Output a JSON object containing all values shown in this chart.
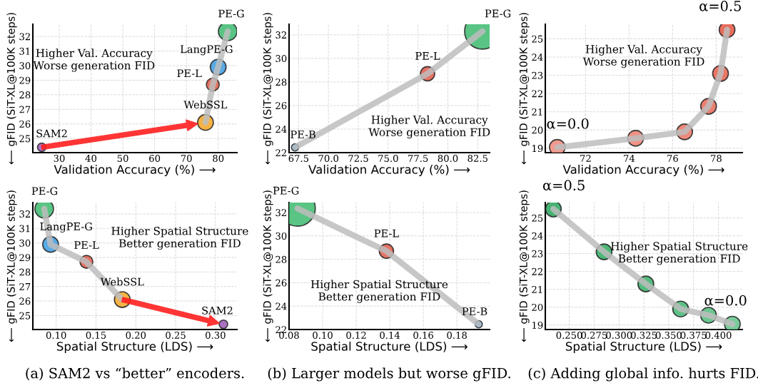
{
  "chart_data": [
    {
      "type": "bubble",
      "xlabel": "Validation Accuracy (%) ⟶",
      "ylabel": "⟵ gFID (SiT-XL@100K steps)",
      "xlim": [
        21.7,
        85.9
      ],
      "ylim": [
        24.03,
        32.84
      ],
      "xticks": [
        30,
        40,
        50,
        60,
        70,
        80
      ],
      "yticks": [
        25,
        26,
        27,
        28,
        29,
        30,
        31,
        32
      ],
      "grid": true,
      "legend": false,
      "series": [
        {
          "type": "line",
          "color": "#bdbdbd",
          "x": [
            76,
            78.3,
            80,
            83
          ],
          "values": [
            26.1,
            28.7,
            29.9,
            32.35
          ]
        },
        {
          "type": "bubble",
          "x": [
            24.5,
            76,
            78.3,
            80,
            83
          ],
          "values": [
            24.4,
            26.1,
            28.7,
            29.9,
            32.35
          ],
          "sizes": [
            0.21,
            0.72,
            0.48,
            0.72,
            1
          ],
          "colors": [
            "#9b59b6",
            "#f5a623",
            "#e05a4a",
            "#3d9be0",
            "#3dba6f"
          ]
        }
      ],
      "annotations": [
        "Higher Val. Accuracy\nWorse generation FID",
        {
          "text": "SAM2",
          "x": 24.5,
          "y": 24.4
        },
        {
          "text": "WebSSL",
          "x": 76,
          "y": 26.1
        },
        {
          "text": "PE-L",
          "x": 78.3,
          "y": 28.7
        },
        {
          "text": "LangPE-G",
          "x": 80,
          "y": 29.9
        },
        {
          "text": "PE-G",
          "x": 83,
          "y": 32.35
        }
      ]
    },
    {
      "type": "bubble",
      "xlabel": "Validation Accuracy (%) ⟶",
      "ylabel": "⟵ gFID (SiT-XL@100K steps)",
      "xlim": [
        66.7,
        83.5
      ],
      "ylim": [
        22,
        32.9
      ],
      "xticks": [
        {
          "value": 67.5,
          "label": "67.5"
        },
        {
          "value": 70,
          "label": "70.0"
        },
        {
          "value": 72.5,
          "label": "72.5"
        },
        {
          "value": 75,
          "label": "75.0"
        },
        {
          "value": 77.5,
          "label": "77.5"
        },
        {
          "value": 80,
          "label": "80.0"
        },
        {
          "value": 82.5,
          "label": "82.5"
        }
      ],
      "yticks": [
        22,
        24,
        26,
        28,
        30,
        32
      ],
      "grid": true,
      "legend": false,
      "series": [
        {
          "type": "line",
          "color": "#bdbdbd",
          "x": [
            67.2,
            78.3,
            82.9
          ],
          "values": [
            22.45,
            28.7,
            32.3
          ]
        },
        {
          "type": "bubble",
          "x": [
            67.2,
            78.3,
            82.9
          ],
          "values": [
            22.45,
            28.7,
            32.3
          ],
          "sizes": [
            0.04,
            0.16,
            1
          ],
          "colors": [
            "#3d9be0",
            "#e05a4a",
            "#3dba6f"
          ]
        }
      ],
      "annotations": [
        "Higher Val. Accuracy\nWorse generation FID",
        {
          "text": "PE-B",
          "x": 67.2,
          "y": 22.45
        },
        {
          "text": "PE-L",
          "x": 78.3,
          "y": 28.7
        },
        {
          "text": "PE-G",
          "x": 82.9,
          "y": 32.3
        }
      ]
    },
    {
      "type": "scatter",
      "xlabel": "Validation Accuracy (%) ⟶",
      "ylabel": "⟵ gFID (SiT-XL@100K steps)",
      "xlim": [
        70.15,
        79.2
      ],
      "ylim": [
        18.76,
        25.8
      ],
      "xticks": [
        72,
        74,
        76,
        78
      ],
      "yticks": [
        19,
        20,
        21,
        22,
        23,
        24,
        25
      ],
      "grid": true,
      "legend": false,
      "series": [
        {
          "type": "line",
          "color": "#bdbdbd",
          "x": [
            70.7,
            74.3,
            76.55,
            77.65,
            78.2,
            78.5
          ],
          "values": [
            19.05,
            19.55,
            19.9,
            21.3,
            23.1,
            25.5
          ]
        },
        {
          "type": "scatter",
          "x": [
            70.7,
            74.3,
            76.55,
            77.65,
            78.2,
            78.5
          ],
          "values": [
            19.05,
            19.55,
            19.9,
            21.3,
            23.1,
            25.5
          ],
          "colors": [
            "#ef8a7c",
            "#ec7f70",
            "#ea7464",
            "#e86a57",
            "#e65f4b",
            "#e4533f"
          ]
        }
      ],
      "annotations": [
        "Higher Val. Accuracy\nWorse generation FID",
        {
          "text": "α=0.0",
          "x": 70.7,
          "y": 19.05
        },
        {
          "text": "α=0.5",
          "x": 78.5,
          "y": 25.5
        }
      ]
    },
    {
      "type": "bubble",
      "title": "(a) SAM2 vs “better” encoders.",
      "xlabel": "Spatial Structure (LDS) ⟶",
      "ylabel": "⟵ gFID (SiT-XL@100K steps)",
      "xlim": [
        0.0707,
        0.327
      ],
      "ylim": [
        24.04,
        32.78
      ],
      "xticks": [
        {
          "value": 0.1,
          "label": "0.10"
        },
        {
          "value": 0.15,
          "label": "0.15"
        },
        {
          "value": 0.2,
          "label": "0.20"
        },
        {
          "value": 0.25,
          "label": "0.25"
        },
        {
          "value": 0.3,
          "label": "0.30"
        }
      ],
      "yticks": [
        25,
        26,
        27,
        28,
        29,
        30,
        31,
        32
      ],
      "grid": true,
      "legend": false,
      "series": [
        {
          "type": "line",
          "color": "#bdbdbd",
          "x": [
            0.085,
            0.093,
            0.138,
            0.183
          ],
          "values": [
            32.35,
            29.9,
            28.7,
            26.1
          ]
        },
        {
          "type": "bubble",
          "x": [
            0.085,
            0.093,
            0.138,
            0.183,
            0.31
          ],
          "values": [
            32.35,
            29.9,
            28.7,
            26.1,
            24.4
          ],
          "sizes": [
            1,
            0.72,
            0.48,
            0.72,
            0.21
          ],
          "colors": [
            "#3dba6f",
            "#3d9be0",
            "#e05a4a",
            "#f5a623",
            "#9b59b6"
          ]
        }
      ],
      "annotations": [
        "Higher Spatial Structure\nBetter generation FID",
        {
          "text": "PE-G",
          "x": 0.085,
          "y": 32.35
        },
        {
          "text": "LangPE-G",
          "x": 0.093,
          "y": 29.9
        },
        {
          "text": "PE-L",
          "x": 0.138,
          "y": 28.7
        },
        {
          "text": "WebSSL",
          "x": 0.183,
          "y": 26.1
        },
        {
          "text": "SAM2",
          "x": 0.31,
          "y": 24.4
        }
      ]
    },
    {
      "type": "bubble",
      "title": "(b) Larger models but worse gFID.",
      "xlabel": "Spatial Structure (LDS) ⟶",
      "ylabel": "⟵ gFID (SiT-XL@100K steps)",
      "xlim": [
        0.08,
        0.1995
      ],
      "ylim": [
        22,
        32.85
      ],
      "xticks": [
        {
          "value": 0.08,
          "label": "0.08"
        },
        {
          "value": 0.1,
          "label": "0.10"
        },
        {
          "value": 0.12,
          "label": "0.12"
        },
        {
          "value": 0.14,
          "label": "0.14"
        },
        {
          "value": 0.16,
          "label": "0.16"
        },
        {
          "value": 0.18,
          "label": "0.18"
        }
      ],
      "yticks": [
        22,
        24,
        26,
        28,
        30,
        32
      ],
      "grid": true,
      "legend": false,
      "series": [
        {
          "type": "line",
          "color": "#bdbdbd",
          "x": [
            0.085,
            0.138,
            0.193
          ],
          "values": [
            32.35,
            28.7,
            22.45
          ]
        },
        {
          "type": "bubble",
          "x": [
            0.085,
            0.138,
            0.193
          ],
          "values": [
            32.35,
            28.7,
            22.45
          ],
          "sizes": [
            1,
            0.16,
            0.04
          ],
          "colors": [
            "#3dba6f",
            "#e05a4a",
            "#3d9be0"
          ]
        }
      ],
      "annotations": [
        "Higher Spatial Structure\nBetter generation FID",
        {
          "text": "PE-G",
          "x": 0.085,
          "y": 32.35
        },
        {
          "text": "PE-L",
          "x": 0.138,
          "y": 28.7
        },
        {
          "text": "PE-B",
          "x": 0.193,
          "y": 22.45
        }
      ]
    },
    {
      "type": "scatter",
      "title": "(c) Adding global info. hurts FID.",
      "xlabel": "Spatial Structure (LDS) ⟶",
      "ylabel": "⟵ gFID (SiT-XL@100K steps)",
      "xlim": [
        0.2259,
        0.424
      ],
      "ylim": [
        18.75,
        25.86
      ],
      "xticks": [
        {
          "value": 0.25,
          "label": "0.250"
        },
        {
          "value": 0.275,
          "label": "0.275"
        },
        {
          "value": 0.3,
          "label": "0.300"
        },
        {
          "value": 0.325,
          "label": "0.325"
        },
        {
          "value": 0.35,
          "label": "0.350"
        },
        {
          "value": 0.375,
          "label": "0.375"
        },
        {
          "value": 0.4,
          "label": "0.400"
        }
      ],
      "yticks": [
        19,
        20,
        21,
        22,
        23,
        24,
        25
      ],
      "grid": true,
      "legend": false,
      "series": [
        {
          "type": "line",
          "color": "#bdbdbd",
          "x": [
            0.234,
            0.285,
            0.327,
            0.362,
            0.39,
            0.414
          ],
          "values": [
            25.5,
            23.1,
            21.3,
            19.9,
            19.55,
            19.05
          ]
        },
        {
          "type": "scatter",
          "x": [
            0.234,
            0.285,
            0.327,
            0.362,
            0.39,
            0.414
          ],
          "values": [
            25.5,
            23.1,
            21.3,
            19.9,
            19.55,
            19.05
          ],
          "colors": [
            "#27a55a",
            "#2fab61",
            "#38b068",
            "#44b672",
            "#52bd7c",
            "#62c489"
          ]
        }
      ],
      "annotations": [
        "Higher Spatial Structure\nBetter generation FID",
        {
          "text": "α=0.5",
          "x": 0.234,
          "y": 25.5
        },
        {
          "text": "α=0.0",
          "x": 0.414,
          "y": 19.05
        }
      ]
    }
  ]
}
